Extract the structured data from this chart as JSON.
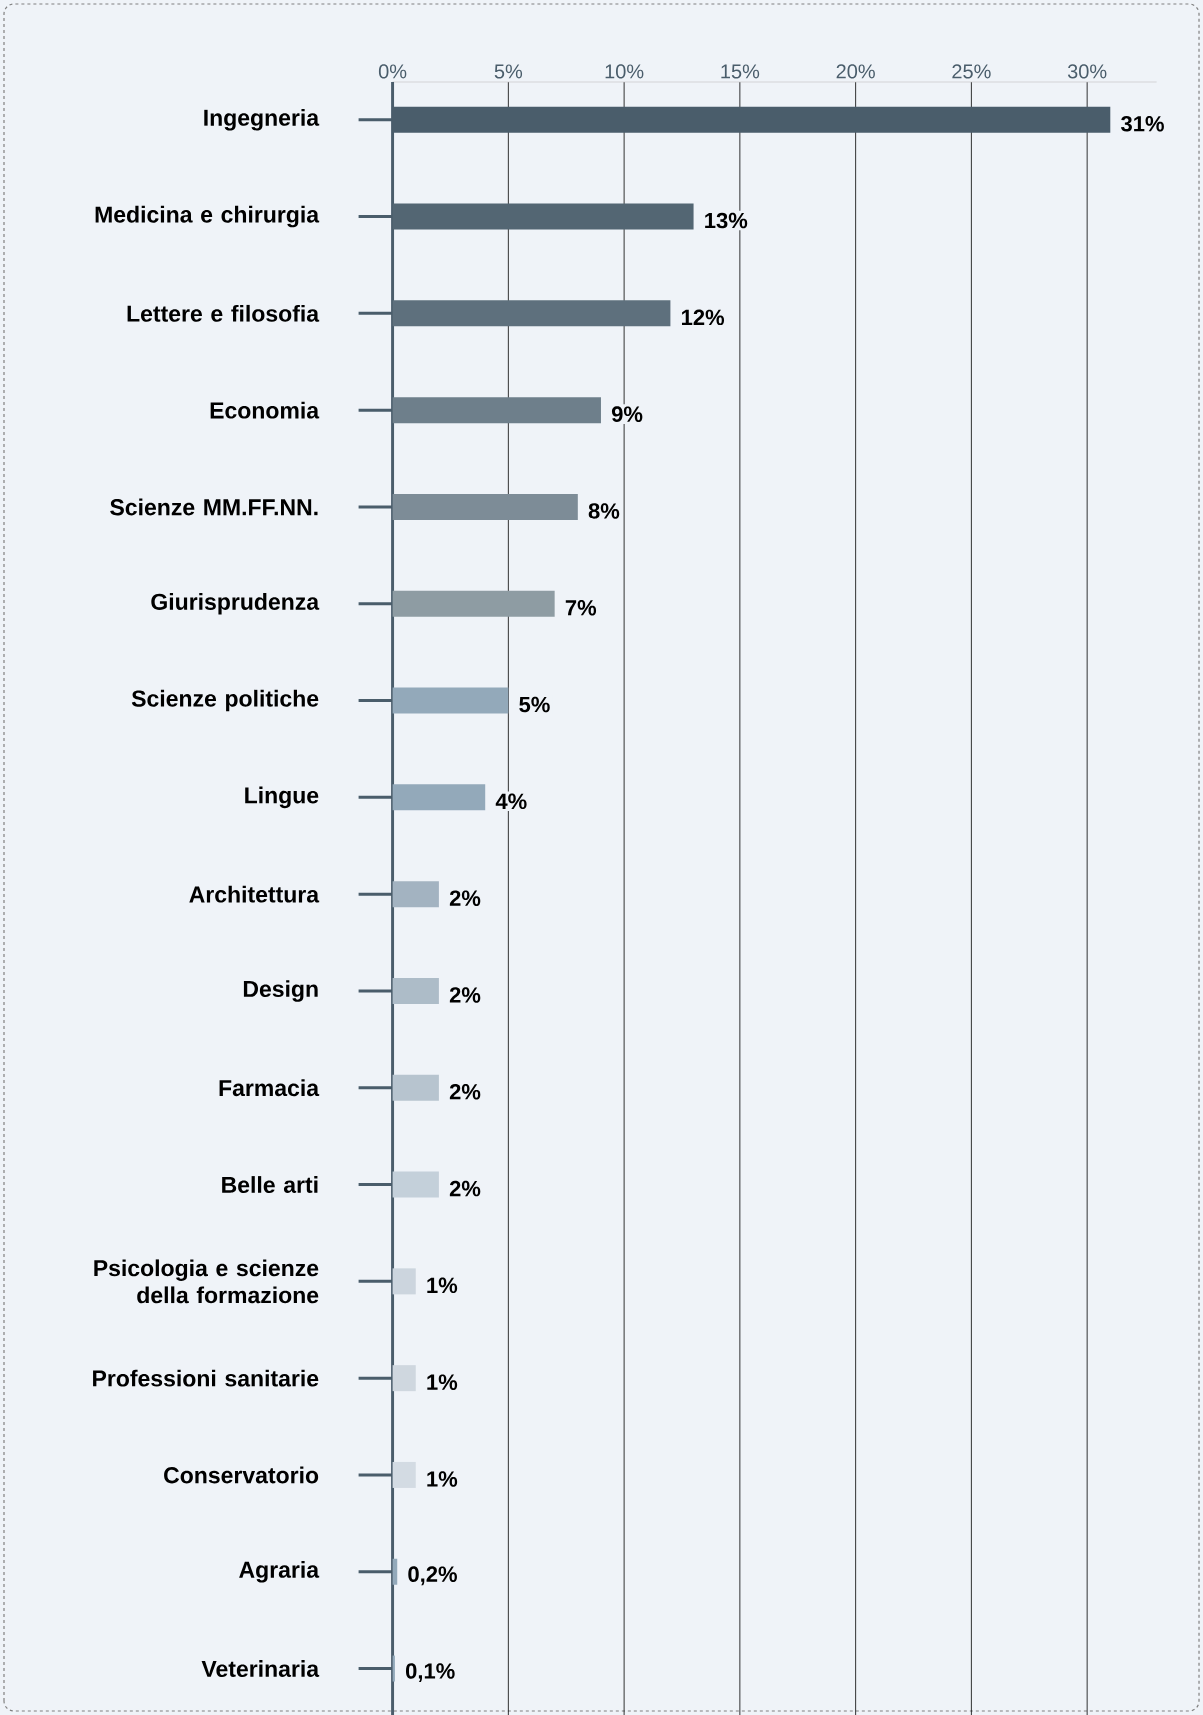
{
  "chart_data": {
    "type": "bar",
    "orientation": "horizontal",
    "categories": [
      "Ingegneria",
      "Medicina e chirurgia",
      "Lettere e filosofia",
      "Economia",
      "Scienze MM.FF.NN.",
      "Giurisprudenza",
      "Scienze politiche",
      "Lingue",
      "Architettura",
      "Design",
      "Farmacia",
      "Belle arti",
      "Psicologia e scienze della formazione",
      "Professioni sanitarie",
      "Conservatorio",
      "Agraria",
      "Veterinaria"
    ],
    "values": [
      31,
      13,
      12,
      9,
      8,
      7,
      5,
      4,
      2,
      2,
      2,
      2,
      1,
      1,
      1,
      0.2,
      0.1
    ],
    "value_labels": [
      "31%",
      "13%",
      "12%",
      "9%",
      "8%",
      "7%",
      "5%",
      "4%",
      "2%",
      "2%",
      "2%",
      "2%",
      "1%",
      "1%",
      "1%",
      "0,2%",
      "0,1%"
    ],
    "colors": [
      "#4a5d6b",
      "#536673",
      "#5e707d",
      "#6e7f8b",
      "#7d8c97",
      "#8e9ca3",
      "#93a9ba",
      "#93a9ba",
      "#a3b3c1",
      "#adbcc8",
      "#b7c4cf",
      "#c4d0da",
      "#ccd5de",
      "#cfd7df",
      "#d3dbe3",
      "#93a9ba",
      "#93a9ba"
    ],
    "xlim": [
      0,
      33
    ],
    "xticks": [
      {
        "value": 0,
        "label": "0%"
      },
      {
        "value": 5,
        "label": "5%"
      },
      {
        "value": 10,
        "label": "10%"
      },
      {
        "value": 15,
        "label": "15%"
      },
      {
        "value": 20,
        "label": "20%"
      },
      {
        "value": 25,
        "label": "25%"
      },
      {
        "value": 30,
        "label": "30%"
      }
    ],
    "grid": "x"
  }
}
